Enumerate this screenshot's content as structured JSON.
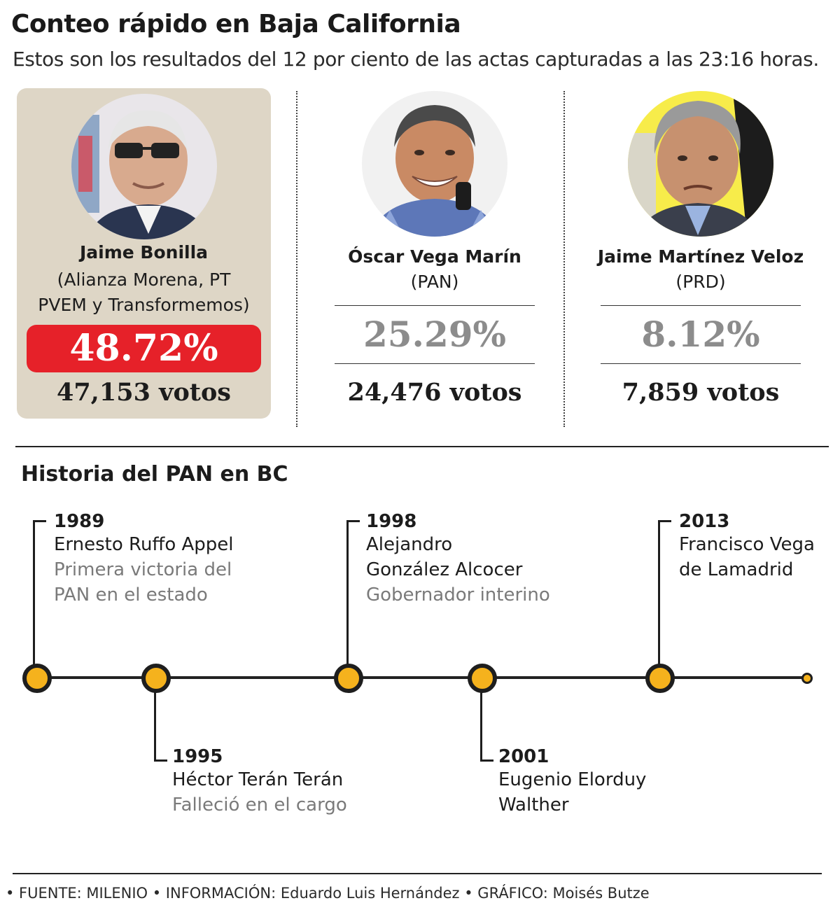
{
  "header": {
    "title": "Conteo rápido en Baja California",
    "subtitle": "Estos son los resultados del 12 por ciento de las actas capturadas a las 23:16 horas."
  },
  "candidates": [
    {
      "name": "Jaime Bonilla",
      "party_line1": "(Alianza Morena, PT",
      "party_line2": "PVEM y Transformemos)",
      "percent": "48.72%",
      "votes": "47,153 votos",
      "highlight": true
    },
    {
      "name": "Óscar Vega Marín",
      "party_line1": "(PAN)",
      "percent": "25.29%",
      "votes": "24,476 votos",
      "highlight": false
    },
    {
      "name": "Jaime Martínez Veloz",
      "party_line1": "(PRD)",
      "percent": "8.12%",
      "votes": "7,859 votos",
      "highlight": false
    }
  ],
  "timeline": {
    "title": "Historia del PAN en BC",
    "events": [
      {
        "year": "1989",
        "name": "Ernesto Ruffo Appel",
        "desc": "Primera victoria del\nPAN en el estado"
      },
      {
        "year": "1995",
        "name": "Héctor Terán Terán",
        "desc": "Falleció en el cargo"
      },
      {
        "year": "1998",
        "name": "Alejandro\nGonzález Alcocer",
        "desc": "Gobernador interino"
      },
      {
        "year": "2001",
        "name": "Eugenio Elorduy\nWalther",
        "desc": ""
      },
      {
        "year": "2013",
        "name": "Francisco Vega\nde Lamadrid",
        "desc": ""
      }
    ]
  },
  "footer": {
    "credits": "• FUENTE: MILENIO  • INFORMACIÓN: Eduardo Luis Hernández  • GRÁFICO: Moisés Butze"
  },
  "colors": {
    "highlight_card": "#ded6c6",
    "percent_red": "#e62129",
    "timeline_dot": "#f5b21d",
    "muted_percent": "#8c8c8c"
  }
}
